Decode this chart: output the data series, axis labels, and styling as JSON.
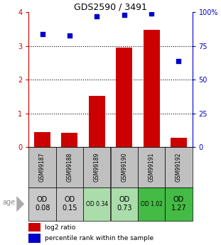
{
  "title": "GDS2590 / 3491",
  "samples": [
    "GSM99187",
    "GSM99188",
    "GSM99189",
    "GSM99190",
    "GSM99191",
    "GSM99192"
  ],
  "log2_ratio": [
    0.45,
    0.42,
    1.52,
    2.95,
    3.48,
    0.28
  ],
  "percentile_rank": [
    84,
    83,
    97,
    98,
    99,
    64
  ],
  "od_values": [
    "OD\n0.08",
    "OD\n0.15",
    "OD 0.34",
    "OD\n0.73",
    "OD 1.02",
    "OD\n1.27"
  ],
  "od_bg_colors": [
    "#c8c8c8",
    "#c8c8c8",
    "#aaddaa",
    "#aaddaa",
    "#44bb44",
    "#44bb44"
  ],
  "od_font_sizes": [
    7,
    7,
    5.5,
    7,
    5.5,
    7
  ],
  "sample_bg_color": "#c0c0c0",
  "bar_color": "#cc0000",
  "scatter_color": "#0000cc",
  "left_axis_color": "#cc0000",
  "right_axis_color": "#0000cc",
  "ylim_left": [
    0,
    4
  ],
  "ylim_right": [
    0,
    100
  ],
  "left_ticks": [
    0,
    1,
    2,
    3,
    4
  ],
  "right_ticks": [
    0,
    25,
    50,
    75,
    100
  ],
  "right_tick_labels": [
    "0",
    "25",
    "50",
    "75",
    "100%"
  ],
  "legend_log2": "log2 ratio",
  "legend_pct": "percentile rank within the sample",
  "age_label": "age"
}
